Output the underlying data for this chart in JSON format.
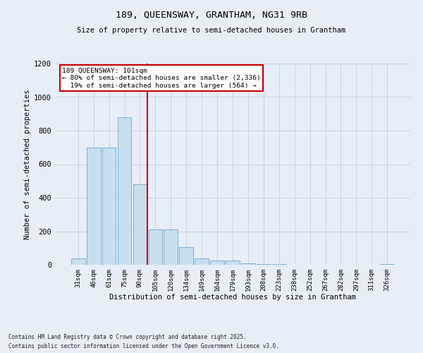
{
  "title_line1": "189, QUEENSWAY, GRANTHAM, NG31 9RB",
  "title_line2": "Size of property relative to semi-detached houses in Grantham",
  "xlabel": "Distribution of semi-detached houses by size in Grantham",
  "ylabel": "Number of semi-detached properties",
  "bar_labels": [
    "31sqm",
    "46sqm",
    "61sqm",
    "75sqm",
    "90sqm",
    "105sqm",
    "120sqm",
    "134sqm",
    "149sqm",
    "164sqm",
    "179sqm",
    "193sqm",
    "208sqm",
    "223sqm",
    "238sqm",
    "252sqm",
    "267sqm",
    "282sqm",
    "297sqm",
    "311sqm",
    "326sqm"
  ],
  "bar_values": [
    40,
    700,
    700,
    880,
    480,
    210,
    210,
    105,
    40,
    25,
    25,
    10,
    5,
    4,
    2,
    2,
    1,
    1,
    0,
    0,
    5
  ],
  "bar_color": "#c8dff0",
  "bar_edge_color": "#7ab0d4",
  "vline_bin_index": 4,
  "vline_color": "#cc0000",
  "ylim": [
    0,
    1200
  ],
  "yticks": [
    0,
    200,
    400,
    600,
    800,
    1000,
    1200
  ],
  "background_color": "#e8eef8",
  "plot_bg_color": "#e8eef8",
  "property_label": "189 QUEENSWAY: 101sqm",
  "pct_smaller": 80,
  "pct_smaller_count": 2336,
  "pct_larger": 19,
  "pct_larger_count": 564,
  "annotation_box_color": "#ffffff",
  "annotation_box_edge": "#cc0000",
  "footer_line1": "Contains HM Land Registry data © Crown copyright and database right 2025.",
  "footer_line2": "Contains public sector information licensed under the Open Government Licence v3.0."
}
